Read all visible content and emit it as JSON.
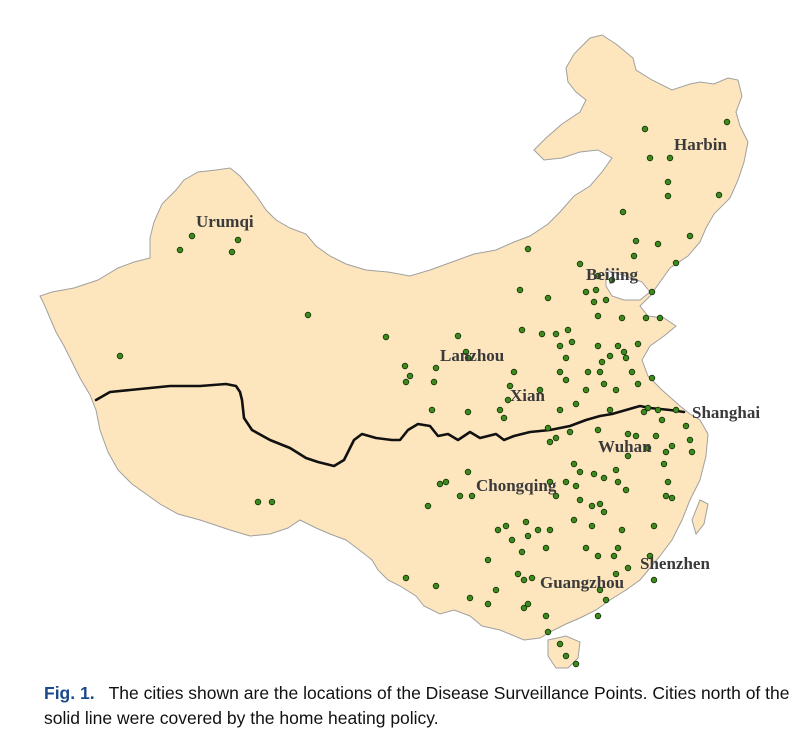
{
  "map": {
    "land_color": "#fde6bd",
    "border_color": "#a0a0a0",
    "dot_color": "#3f8a1c",
    "dot_stroke": "#0d2e06",
    "divider_color": "#111111",
    "cities": [
      {
        "key": "harbin",
        "name": "Harbin"
      },
      {
        "key": "urumqi",
        "name": "Urumqi"
      },
      {
        "key": "beijing",
        "name": "Beijing"
      },
      {
        "key": "lanzhou",
        "name": "Lanzhou"
      },
      {
        "key": "xian",
        "name": "Xian"
      },
      {
        "key": "shanghai",
        "name": "Shanghai"
      },
      {
        "key": "wuhan",
        "name": "Wuhan"
      },
      {
        "key": "chongqing",
        "name": "Chongqing"
      },
      {
        "key": "shenzhen",
        "name": "Shenzhen"
      },
      {
        "key": "guangzhou",
        "name": "Guangzhou"
      }
    ]
  },
  "caption": {
    "label": "Fig. 1.",
    "text": "The cities shown are the locations of the Disease Surveillance Points. Cities north of the solid line were covered by the home heating policy."
  }
}
